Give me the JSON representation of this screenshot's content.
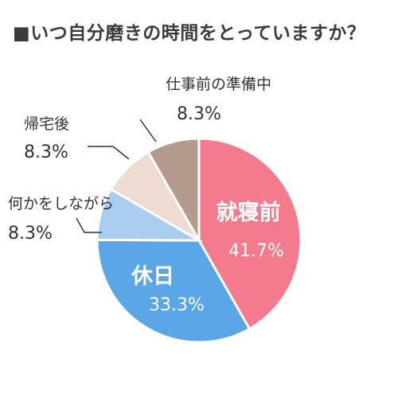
{
  "title": "■いつ自分磨きの時間をとっていますか？",
  "chart_data": {
    "type": "pie",
    "title": "■いつ自分磨きの時間をとっていますか？",
    "slices": [
      {
        "label": "就寝前",
        "value": 41.7,
        "value_text": "41.7%",
        "color": "#f47b8e"
      },
      {
        "label": "休日",
        "value": 33.3,
        "value_text": "33.3%",
        "color": "#5aa6e6"
      },
      {
        "label": "何かをしながら",
        "value": 8.3,
        "value_text": "8.3%",
        "color": "#a9cdee"
      },
      {
        "label": "帰宅後",
        "value": 8.3,
        "value_text": "8.3%",
        "color": "#eedbd2"
      },
      {
        "label": "仕事前の準備中",
        "value": 8.3,
        "value_text": "8.3%",
        "color": "#b49a8c"
      }
    ],
    "legend": "none"
  }
}
